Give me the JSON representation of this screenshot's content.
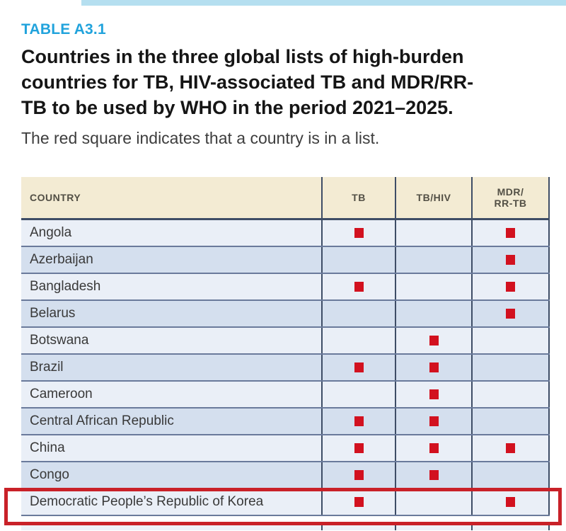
{
  "document": {
    "table_label": "TABLE A3.1",
    "title": "Countries in the three global lists of high-burden\ncountries for TB, HIV-associated TB and MDR/RR-\nTB to be used by WHO in the period 2021–2025.",
    "subtitle": "The red square indicates that a country is in a list."
  },
  "colors": {
    "accent_blue": "#21a3dc",
    "marker_red": "#d2111f",
    "highlight_box_red": "#c92128",
    "header_bg": "#f3ebd3",
    "row_light": "#eaeff7",
    "row_dark": "#d4dfee",
    "grid_line": "#3e4d66",
    "row_divider": "#6a7a9b",
    "top_strip_blue": "#b5dff0"
  },
  "table": {
    "columns": [
      "COUNTRY",
      "TB",
      "TB/HIV",
      "MDR/\nRR-TB"
    ],
    "marker_meaning": "red square = country is in the list",
    "rows": [
      {
        "country": "Angola",
        "tb": true,
        "tb_hiv": false,
        "mdr_rr_tb": true,
        "highlighted": false
      },
      {
        "country": "Azerbaijan",
        "tb": false,
        "tb_hiv": false,
        "mdr_rr_tb": true,
        "highlighted": false
      },
      {
        "country": "Bangladesh",
        "tb": true,
        "tb_hiv": false,
        "mdr_rr_tb": true,
        "highlighted": false
      },
      {
        "country": "Belarus",
        "tb": false,
        "tb_hiv": false,
        "mdr_rr_tb": true,
        "highlighted": false
      },
      {
        "country": "Botswana",
        "tb": false,
        "tb_hiv": true,
        "mdr_rr_tb": false,
        "highlighted": false
      },
      {
        "country": "Brazil",
        "tb": true,
        "tb_hiv": true,
        "mdr_rr_tb": false,
        "highlighted": false
      },
      {
        "country": "Cameroon",
        "tb": false,
        "tb_hiv": true,
        "mdr_rr_tb": false,
        "highlighted": false
      },
      {
        "country": "Central African Republic",
        "tb": true,
        "tb_hiv": true,
        "mdr_rr_tb": false,
        "highlighted": false
      },
      {
        "country": "China",
        "tb": true,
        "tb_hiv": true,
        "mdr_rr_tb": true,
        "highlighted": false
      },
      {
        "country": "Congo",
        "tb": true,
        "tb_hiv": true,
        "mdr_rr_tb": false,
        "highlighted": false
      },
      {
        "country": "Democratic People’s Republic of Korea",
        "tb": true,
        "tb_hiv": false,
        "mdr_rr_tb": true,
        "highlighted": true
      }
    ]
  }
}
